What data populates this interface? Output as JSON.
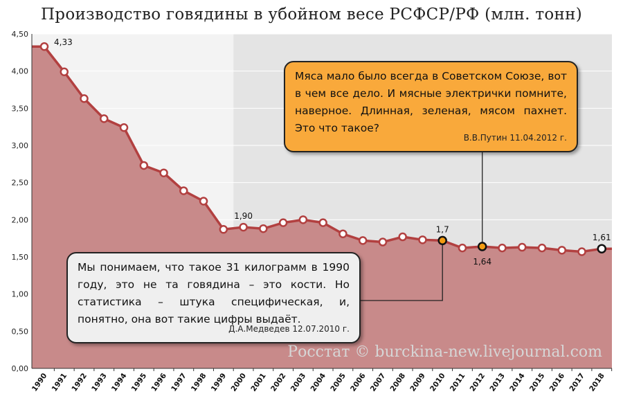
{
  "title": "Производство говядины в убойном весе РСФСР/РФ (млн. тонн)",
  "source": "Росстат © burckina-new.livejournal.com",
  "colors": {
    "area": "#c88a8a",
    "line": "#b24040",
    "bg_left": "#f3f3f3",
    "bg_right": "#e4e4e4",
    "callout_orange": "#f9a93b",
    "callout_grey": "#efefef",
    "highlight_marker": "#f39c12"
  },
  "callouts": {
    "putin": {
      "text": "Мяса мало было всегда в Советском Союзе, вот в чем все дело. И мясные электрички помните, наверное. Длинная, зеленая, мясом пахнет. Это что такое?",
      "attribution": "В.В.Путин 11.04.2012 г.",
      "points_to_year": "2012"
    },
    "medvedev": {
      "text": "Мы понимаем, что такое 31 килограмм в 1990 году, это не та говядина – это кости. Но статистика – штука специфическая, и, понятно, она вот такие цифры выдаёт.",
      "attribution": "Д.А.Медведев 12.07.2010 г.",
      "points_to_year": "2010"
    }
  },
  "chart_data": {
    "type": "area",
    "title": "Производство говядины в убойном весе РСФСР/РФ (млн. тонн)",
    "categories": [
      "1990",
      "1991",
      "1992",
      "1993",
      "1994",
      "1995",
      "1996",
      "1997",
      "1998",
      "1999",
      "2000",
      "2001",
      "2002",
      "2003",
      "2004",
      "2005",
      "2006",
      "2007",
      "2008",
      "2009",
      "2010",
      "2011",
      "2012",
      "2013",
      "2014",
      "2015",
      "2016",
      "2017",
      "2018"
    ],
    "values": [
      4.33,
      3.99,
      3.63,
      3.36,
      3.24,
      2.73,
      2.63,
      2.39,
      2.25,
      1.87,
      1.9,
      1.88,
      1.96,
      2.0,
      1.96,
      1.81,
      1.72,
      1.7,
      1.77,
      1.73,
      1.72,
      1.62,
      1.64,
      1.62,
      1.63,
      1.62,
      1.59,
      1.57,
      1.61
    ],
    "ylim": [
      0,
      4.5
    ],
    "yticks": [
      "0,00",
      "0,50",
      "1,00",
      "1,50",
      "2,00",
      "2,50",
      "3,00",
      "3,50",
      "4,00",
      "4,50"
    ],
    "data_labels": [
      {
        "year": "1990",
        "text": "4,33"
      },
      {
        "year": "2000",
        "text": "1,90"
      },
      {
        "year": "2010",
        "text": "1,7"
      },
      {
        "year": "2012",
        "text": "1,64"
      },
      {
        "year": "2018",
        "text": "1,61"
      }
    ],
    "highlighted_years": [
      "2010",
      "2012"
    ],
    "endpoint_marked_year": "2018",
    "background_split_year": "2000",
    "grid": true
  }
}
